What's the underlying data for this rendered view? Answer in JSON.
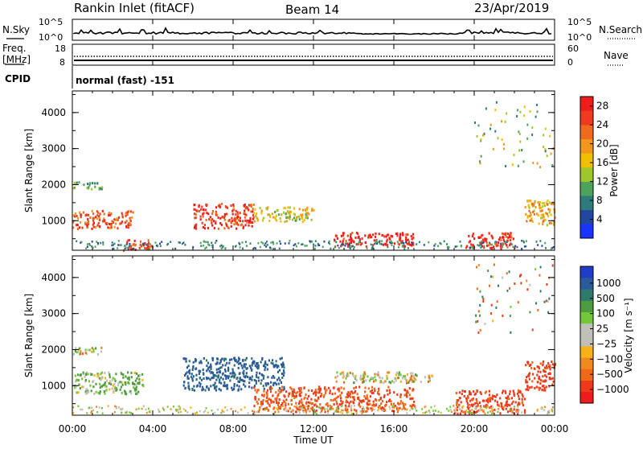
{
  "header": {
    "station": "Rankin Inlet (fitACF)",
    "beam": "Beam 14",
    "date": "23/Apr/2019"
  },
  "left_labels": {
    "nsky": "N.Sky",
    "freq_top": "Freq.",
    "freq_unit": "[MHz]",
    "cpid": "CPID"
  },
  "right_labels": {
    "nsearch": "N.Search",
    "nave": "Nave"
  },
  "cpid_text": "normal (fast) -151",
  "noise_axis": {
    "top": "10^5",
    "bottom": "10^0"
  },
  "freq_axis": {
    "left": [
      "18",
      "8"
    ],
    "right": [
      "60",
      "0"
    ]
  },
  "x_axis": {
    "label": "Time UT",
    "ticks": [
      "00:00",
      "04:00",
      "08:00",
      "12:00",
      "16:00",
      "20:00",
      "00:00"
    ]
  },
  "power_panel": {
    "ylabel": "Slant Range [km]",
    "yticks": [
      "4000",
      "3000",
      "2000",
      "1000"
    ],
    "colorbar_label": "Power [dB]",
    "colorbar_ticks": [
      "28",
      "24",
      "20",
      "16",
      "12",
      "8",
      "4"
    ],
    "colors": [
      "#1a33ff",
      "#22479f",
      "#2f7a7a",
      "#4ea35a",
      "#9ec62d",
      "#f0c000",
      "#f3961e",
      "#f06a1e",
      "#ee3a1e",
      "#ef1c1c"
    ]
  },
  "velocity_panel": {
    "ylabel": "Slant Range [km]",
    "yticks": [
      "4000",
      "3000",
      "2000",
      "1000"
    ],
    "colorbar_label": "Velocity [m s⁻¹]",
    "colorbar_ticks": [
      "1000",
      "500",
      "100",
      "25",
      "−25",
      "−100",
      "−500",
      "−1000"
    ],
    "colors": [
      "#1f3ec8",
      "#2a5a9a",
      "#2f7a6a",
      "#4f9b3f",
      "#72c83a",
      "#c0c0b8",
      "#c0c0b8",
      "#f5b21a",
      "#f08a1e",
      "#ef6a18",
      "#ee3a1a",
      "#ee1c1c"
    ]
  },
  "chart_data": [
    {
      "type": "heatmap",
      "title": "Power",
      "xlabel": "Time UT",
      "ylabel": "Slant Range [km]",
      "xlim": [
        "00:00",
        "24:00"
      ],
      "ylim": [
        180,
        4600
      ],
      "colorbar": {
        "label": "Power [dB]",
        "range": [
          0,
          30
        ],
        "ticks": [
          4,
          8,
          12,
          16,
          20,
          24,
          28
        ]
      },
      "regions": [
        {
          "t_start": 0.0,
          "t_end": 3.0,
          "range_low": 800,
          "range_high": 1300,
          "value": 24
        },
        {
          "t_start": 0.0,
          "t_end": 1.5,
          "range_low": 1900,
          "range_high": 2100,
          "value": 12
        },
        {
          "t_start": 2.5,
          "t_end": 4.0,
          "range_low": 200,
          "range_high": 500,
          "value": 26
        },
        {
          "t_start": 6.0,
          "t_end": 9.0,
          "range_low": 800,
          "range_high": 1500,
          "value": 26
        },
        {
          "t_start": 9.0,
          "t_end": 12.0,
          "range_low": 1000,
          "range_high": 1400,
          "value": 16
        },
        {
          "t_start": 13.0,
          "t_end": 17.0,
          "range_low": 300,
          "range_high": 700,
          "value": 28
        },
        {
          "t_start": 19.5,
          "t_end": 22.0,
          "range_low": 250,
          "range_high": 700,
          "value": 28
        },
        {
          "t_start": 22.5,
          "t_end": 24.0,
          "range_low": 900,
          "range_high": 1600,
          "value": 18
        }
      ]
    },
    {
      "type": "heatmap",
      "title": "Velocity",
      "xlabel": "Time UT",
      "ylabel": "Slant Range [km]",
      "xlim": [
        "00:00",
        "24:00"
      ],
      "ylim": [
        180,
        4600
      ],
      "colorbar": {
        "label": "Velocity [m s⁻¹]",
        "range": [
          -1000,
          1000
        ],
        "ticks": [
          1000,
          500,
          100,
          25,
          -25,
          -100,
          -500,
          -1000
        ]
      },
      "regions": [
        {
          "t_start": 0.0,
          "t_end": 3.5,
          "range_low": 800,
          "range_high": 1400,
          "value": 100
        },
        {
          "t_start": 0.0,
          "t_end": 1.5,
          "range_low": 1900,
          "range_high": 2100,
          "value": 0
        },
        {
          "t_start": 5.5,
          "t_end": 10.5,
          "range_low": 900,
          "range_high": 1800,
          "value": 800
        },
        {
          "t_start": 9.0,
          "t_end": 17.0,
          "range_low": 300,
          "range_high": 1000,
          "value": -300
        },
        {
          "t_start": 13.0,
          "t_end": 18.0,
          "range_low": 1100,
          "range_high": 1400,
          "value": 0
        },
        {
          "t_start": 19.0,
          "t_end": 22.5,
          "range_low": 250,
          "range_high": 900,
          "value": -400
        },
        {
          "t_start": 22.5,
          "t_end": 24.0,
          "range_low": 900,
          "range_high": 1700,
          "value": -400
        }
      ]
    }
  ]
}
